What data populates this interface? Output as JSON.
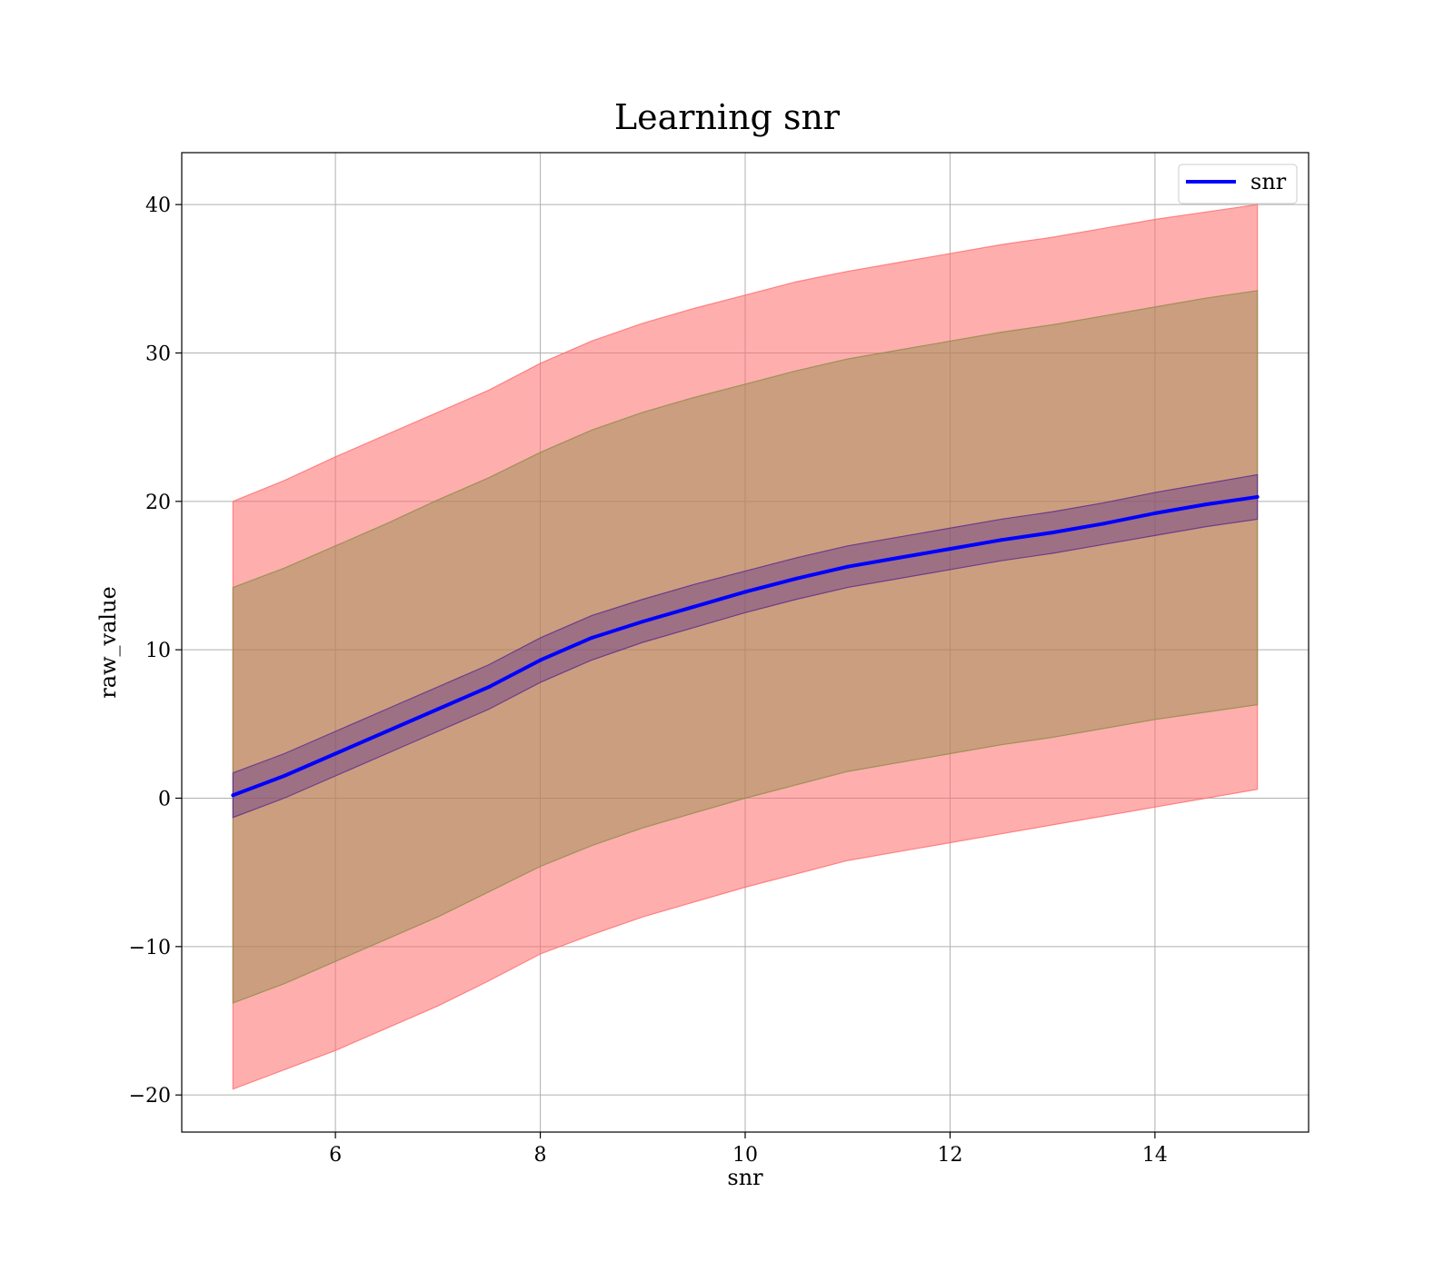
{
  "chart_data": {
    "type": "line",
    "title": "Learning snr",
    "xlabel": "snr",
    "ylabel": "raw_value",
    "xlim": [
      4.5,
      15.5
    ],
    "ylim": [
      -22.5,
      43.5
    ],
    "xticks": [
      6,
      8,
      10,
      12,
      14
    ],
    "yticks": [
      -20,
      -10,
      0,
      10,
      20,
      30,
      40
    ],
    "xtick_labels": [
      "6",
      "8",
      "10",
      "12",
      "14"
    ],
    "ytick_labels": [
      "−20",
      "−10",
      "0",
      "10",
      "20",
      "30",
      "40"
    ],
    "grid": true,
    "legend": {
      "position": "top-right",
      "entries": [
        "snr"
      ]
    },
    "x": [
      5.0,
      5.5,
      6.0,
      6.5,
      7.0,
      7.5,
      8.0,
      8.5,
      9.0,
      9.5,
      10.0,
      10.5,
      11.0,
      11.5,
      12.0,
      12.5,
      13.0,
      13.5,
      14.0,
      14.5,
      15.0
    ],
    "series": [
      {
        "name": "snr",
        "color": "#0000ff",
        "values": [
          0.2,
          1.5,
          3.0,
          4.5,
          6.0,
          7.5,
          9.3,
          10.8,
          11.9,
          12.9,
          13.9,
          14.8,
          15.6,
          16.2,
          16.8,
          17.4,
          17.9,
          18.5,
          19.2,
          19.8,
          20.3
        ]
      }
    ],
    "bands": [
      {
        "color": "#ff6b6b",
        "opacity": 0.55,
        "lower": [
          -19.6,
          -18.3,
          -17.0,
          -15.5,
          -14.0,
          -12.3,
          -10.5,
          -9.2,
          -8.0,
          -7.0,
          -6.0,
          -5.1,
          -4.2,
          -3.6,
          -3.0,
          -2.4,
          -1.8,
          -1.2,
          -0.6,
          0.0,
          0.6
        ],
        "upper": [
          20.0,
          21.4,
          23.0,
          24.5,
          26.0,
          27.5,
          29.3,
          30.8,
          32.0,
          33.0,
          33.9,
          34.8,
          35.5,
          36.1,
          36.7,
          37.3,
          37.8,
          38.4,
          39.0,
          39.5,
          40.0
        ]
      },
      {
        "color": "#8c8c46",
        "opacity": 0.45,
        "lower": [
          -13.8,
          -12.5,
          -11.0,
          -9.5,
          -8.0,
          -6.3,
          -4.6,
          -3.2,
          -2.0,
          -1.0,
          0.0,
          0.9,
          1.8,
          2.4,
          3.0,
          3.6,
          4.1,
          4.7,
          5.3,
          5.8,
          6.3
        ],
        "upper": [
          14.2,
          15.5,
          17.0,
          18.5,
          20.1,
          21.6,
          23.3,
          24.8,
          26.0,
          27.0,
          27.9,
          28.8,
          29.6,
          30.2,
          30.8,
          31.4,
          31.9,
          32.5,
          33.1,
          33.7,
          34.2
        ]
      },
      {
        "color": "#5a2a8c",
        "opacity": 0.4,
        "lower": [
          -1.3,
          0.0,
          1.5,
          3.0,
          4.5,
          6.0,
          7.8,
          9.3,
          10.5,
          11.5,
          12.5,
          13.4,
          14.2,
          14.8,
          15.4,
          16.0,
          16.5,
          17.1,
          17.7,
          18.3,
          18.8
        ],
        "upper": [
          1.7,
          3.0,
          4.5,
          6.0,
          7.5,
          9.0,
          10.8,
          12.3,
          13.4,
          14.4,
          15.3,
          16.2,
          17.0,
          17.6,
          18.2,
          18.8,
          19.3,
          19.9,
          20.6,
          21.2,
          21.8
        ]
      }
    ]
  }
}
